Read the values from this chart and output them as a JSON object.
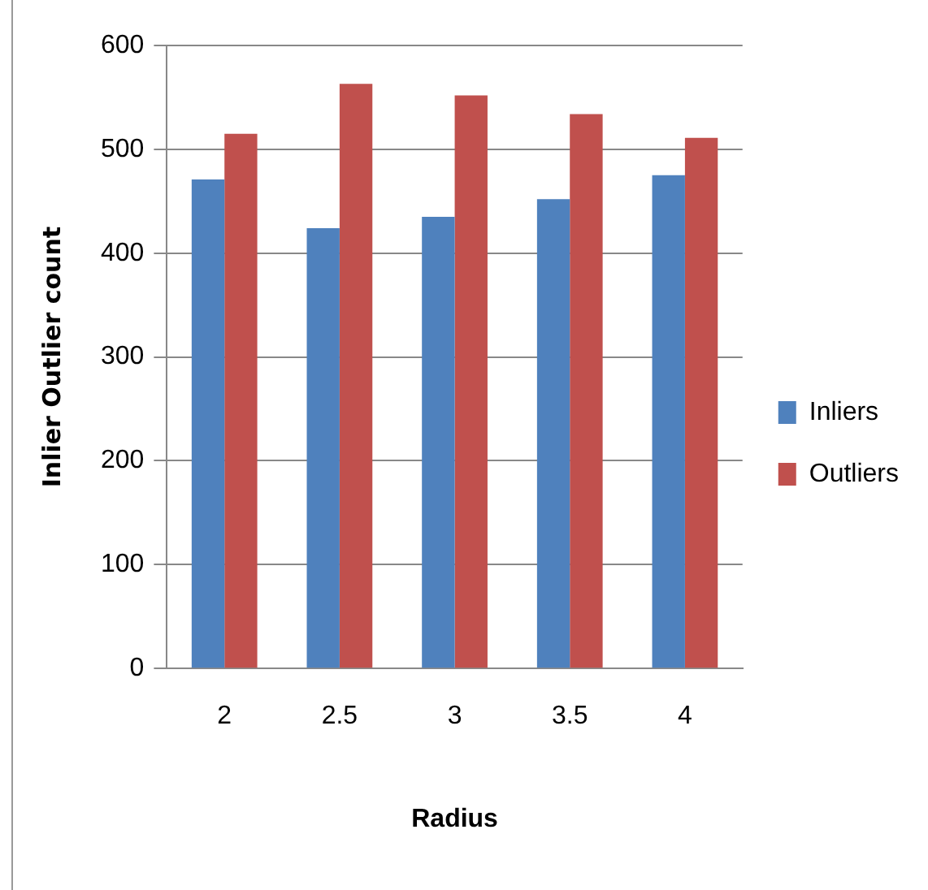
{
  "chart_data": {
    "type": "bar",
    "xlabel": "Radius",
    "ylabel": "Inlier Outlier count",
    "categories": [
      "2",
      "2.5",
      "3",
      "3.5",
      "4"
    ],
    "series": [
      {
        "name": "Inliers",
        "color": "#4f81bd",
        "values": [
          471,
          424,
          435,
          452,
          475
        ]
      },
      {
        "name": "Outliers",
        "color": "#c0504d",
        "values": [
          515,
          563,
          552,
          534,
          511
        ]
      }
    ],
    "ylim": [
      0,
      600
    ],
    "yticks": [
      0,
      100,
      200,
      300,
      400,
      500,
      600
    ],
    "grid": "y",
    "legend": "right"
  }
}
